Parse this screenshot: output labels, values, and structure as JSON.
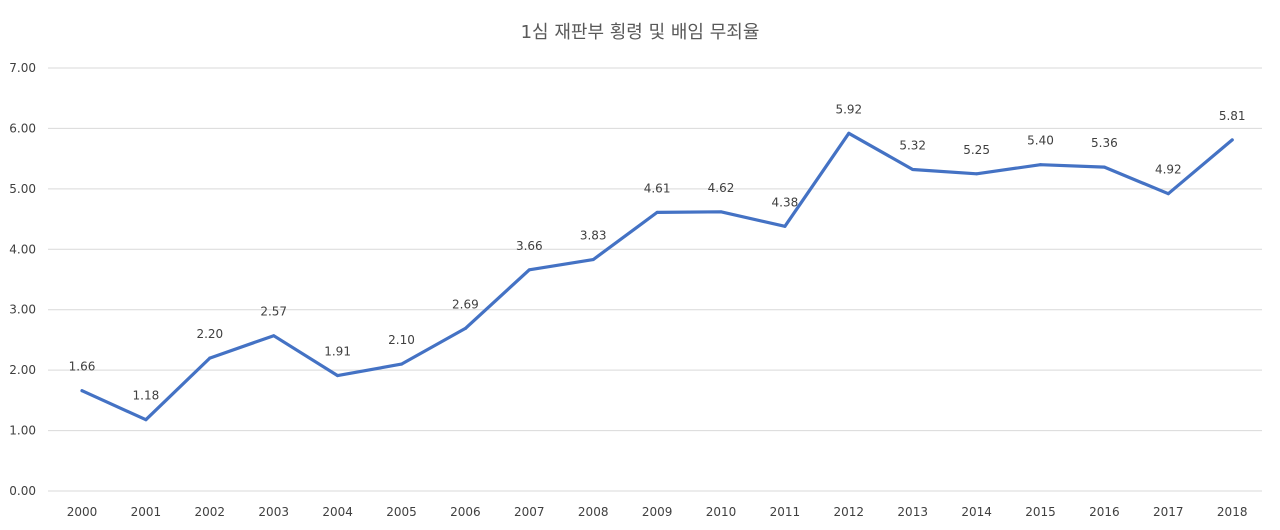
{
  "chart_data": {
    "type": "line",
    "title": "1심 재판부 횡령 및 배임 무죄율",
    "xlabel": "",
    "ylabel": "",
    "categories": [
      "2000",
      "2001",
      "2002",
      "2003",
      "2004",
      "2005",
      "2006",
      "2007",
      "2008",
      "2009",
      "2010",
      "2011",
      "2012",
      "2013",
      "2014",
      "2015",
      "2016",
      "2017",
      "2018"
    ],
    "series": [
      {
        "values": [
          1.66,
          1.18,
          2.2,
          2.57,
          1.91,
          2.1,
          2.69,
          3.66,
          3.83,
          4.61,
          4.62,
          4.38,
          5.92,
          5.32,
          5.25,
          5.4,
          5.36,
          4.92,
          5.81
        ],
        "data_labels": [
          "1.66",
          "1.18",
          "2.20",
          "2.57",
          "1.91",
          "2.10",
          "2.69",
          "3.66",
          "3.83",
          "4.61",
          "4.62",
          "4.38",
          "5.92",
          "5.32",
          "5.25",
          "5.40",
          "5.36",
          "4.92",
          "5.81"
        ],
        "color": "#4472c4"
      }
    ],
    "ylim": [
      0,
      7
    ],
    "yticks": [
      "0.00",
      "1.00",
      "2.00",
      "3.00",
      "4.00",
      "5.00",
      "6.00",
      "7.00"
    ],
    "grid": true,
    "legend": "none"
  }
}
